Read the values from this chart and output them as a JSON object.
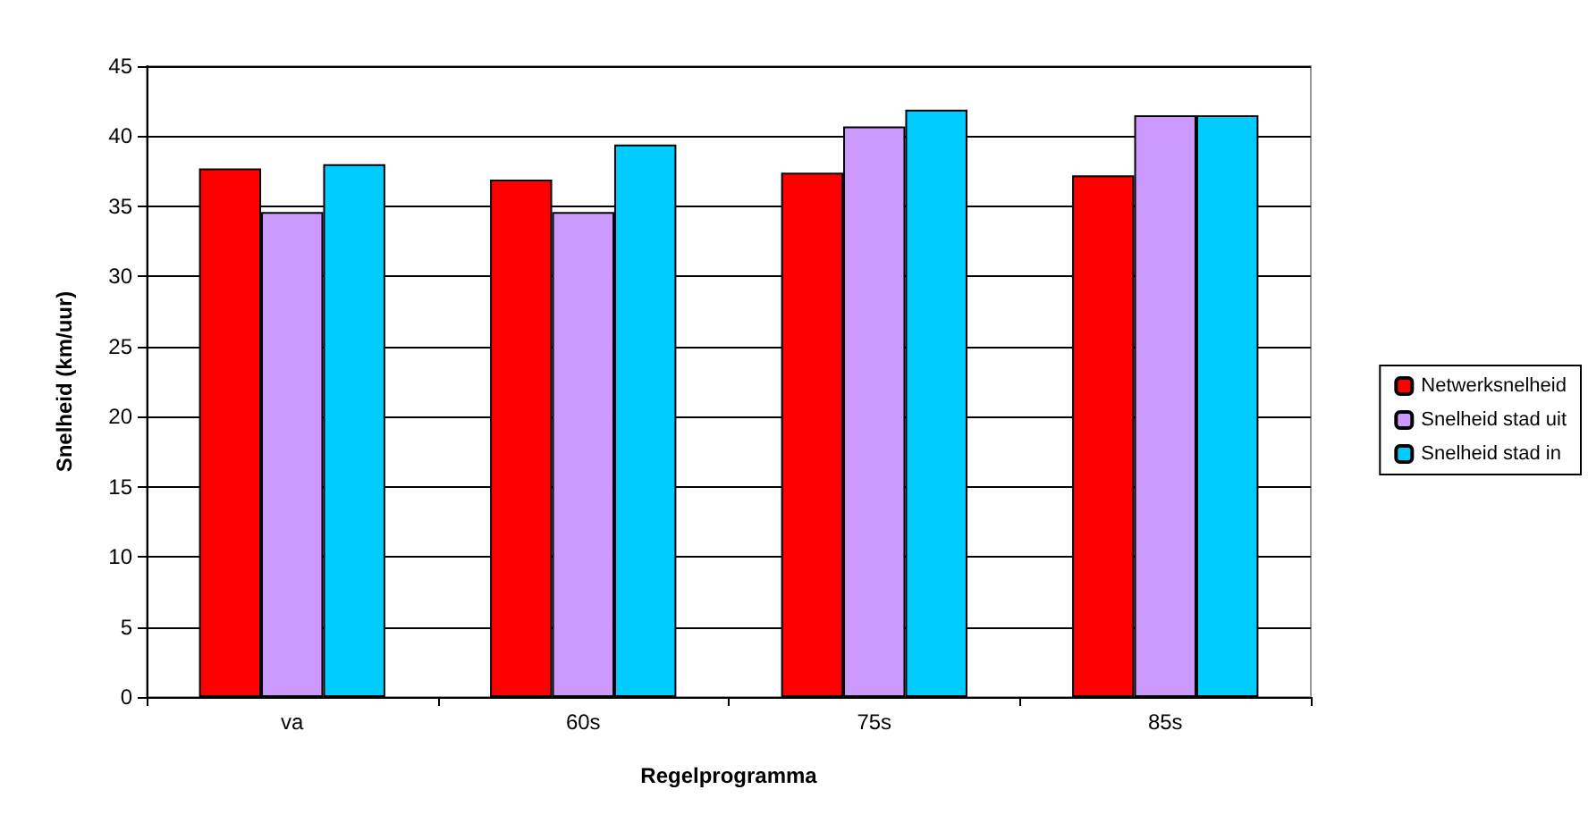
{
  "chart_data": {
    "type": "bar",
    "xlabel": "Regelprogramma",
    "ylabel": "Snelheid (km/uur)",
    "categories": [
      "va",
      "60s",
      "75s",
      "85s"
    ],
    "series": [
      {
        "name": "Netwerksnelheid",
        "color": "#ff0000",
        "values": [
          37.7,
          36.9,
          37.4,
          37.2
        ]
      },
      {
        "name": "Snelheid stad uit",
        "color": "#cc99ff",
        "values": [
          34.6,
          34.6,
          40.7,
          41.5
        ]
      },
      {
        "name": "Snelheid stad in",
        "color": "#00ccff",
        "values": [
          38.0,
          39.4,
          41.9,
          41.5
        ]
      }
    ],
    "ylim": [
      0,
      45
    ],
    "yticks": [
      0,
      5,
      10,
      15,
      20,
      25,
      30,
      35,
      40,
      45
    ],
    "grid": "y",
    "legend": "right"
  }
}
